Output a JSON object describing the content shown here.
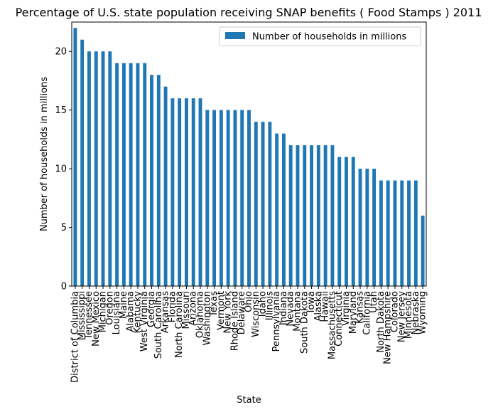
{
  "chart_data": {
    "type": "bar",
    "title": "Percentage of U.S. state population receiving SNAP benefits ( Food Stamps ) 2011",
    "xlabel": "State",
    "ylabel": "Number of households in millions",
    "ylim": [
      0,
      22.5
    ],
    "yticks": [
      0,
      5,
      10,
      15,
      20
    ],
    "grid": false,
    "legend_position": "top-right",
    "series": [
      {
        "name": "Number of households in millions",
        "color": "#1f77b4",
        "values": [
          22,
          21,
          20,
          20,
          20,
          20,
          19,
          19,
          19,
          19,
          19,
          18,
          18,
          17,
          16,
          16,
          16,
          16,
          16,
          15,
          15,
          15,
          15,
          15,
          15,
          15,
          14,
          14,
          14,
          13,
          13,
          12,
          12,
          12,
          12,
          12,
          12,
          12,
          11,
          11,
          11,
          10,
          10,
          10,
          9,
          9,
          9,
          9,
          9,
          9,
          6
        ]
      }
    ],
    "categories": [
      "District of Columbia",
      "Mississippi",
      "Tennessee",
      "New Mexico",
      "Michigan",
      "Oregon",
      "Louisiana",
      "Maine",
      "Alabama",
      "Kentucky",
      "West Virginia",
      "Georgia",
      "South Carolina",
      "Arkansas",
      "Florida",
      "North Carolina",
      "Missouri",
      "Arizona",
      "Oklahoma",
      "Washington",
      "Texas",
      "Vermont",
      "New York",
      "Rhode Island",
      "Delaware",
      "Ohio",
      "Wisconsin",
      "Idaho",
      "Illinois",
      "Pennsylvania",
      "Indiana",
      "Nevada",
      "Montana",
      "South Dakota",
      "Iowa",
      "Alaska",
      "Hawaii",
      "Massachusetts",
      "Connecticut",
      "Virginia",
      "Maryland",
      "Kansas",
      "California",
      "Utah",
      "North Dakota",
      "New Hampshire",
      "Colorado",
      "New Jersey",
      "Minnesota",
      "Nebraska",
      "Wyoming"
    ]
  }
}
